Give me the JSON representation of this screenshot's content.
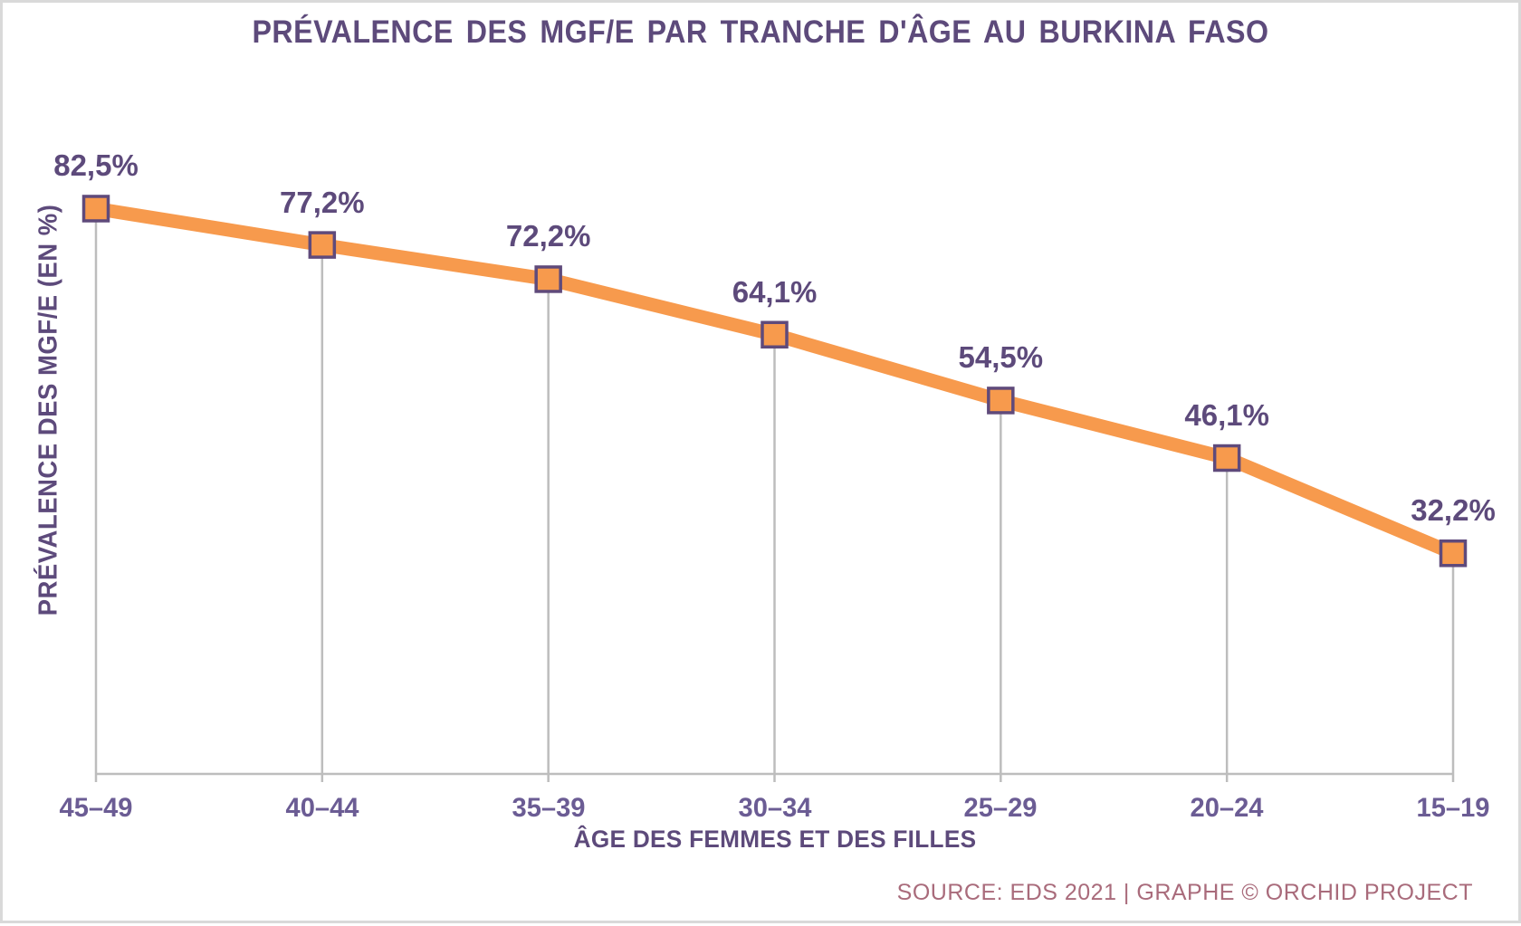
{
  "title": "PRÉVALENCE DES MGF/E PAR TRANCHE D'ÂGE AU BURKINA FASO",
  "source_note": "SOURCE: EDS 2021 | GRAPHE © ORCHID PROJECT",
  "chart_data": {
    "type": "line",
    "title": "PRÉVALENCE DES MGF/E PAR TRANCHE D'ÂGE AU BURKINA FASO",
    "categories": [
      "45–49",
      "40–44",
      "35–39",
      "30–34",
      "25–29",
      "20–24",
      "15–19"
    ],
    "values": [
      82.5,
      77.2,
      72.2,
      64.1,
      54.5,
      46.1,
      32.2
    ],
    "value_labels": [
      "82,5%",
      "77,2%",
      "72,2%",
      "64,1%",
      "54,5%",
      "46,1%",
      "32,2%"
    ],
    "xlabel": "ÂGE DES FEMMES ET DES FILLES",
    "ylabel": "PRÉVALENCE DES MGF/E (EN %)",
    "ylim": [
      0,
      100
    ],
    "grid": false,
    "legend": false,
    "marker": "square",
    "drop_lines": true
  },
  "colors": {
    "line": "#F79A4D",
    "marker_fill": "#F79A4D",
    "marker_border": "#5F4A7B",
    "title_text": "#5D4A7B",
    "tick_text": "#6B5C94",
    "axis_line": "#BDBDBD",
    "source_text": "#A96B7B",
    "background": "#FFFFFF"
  }
}
